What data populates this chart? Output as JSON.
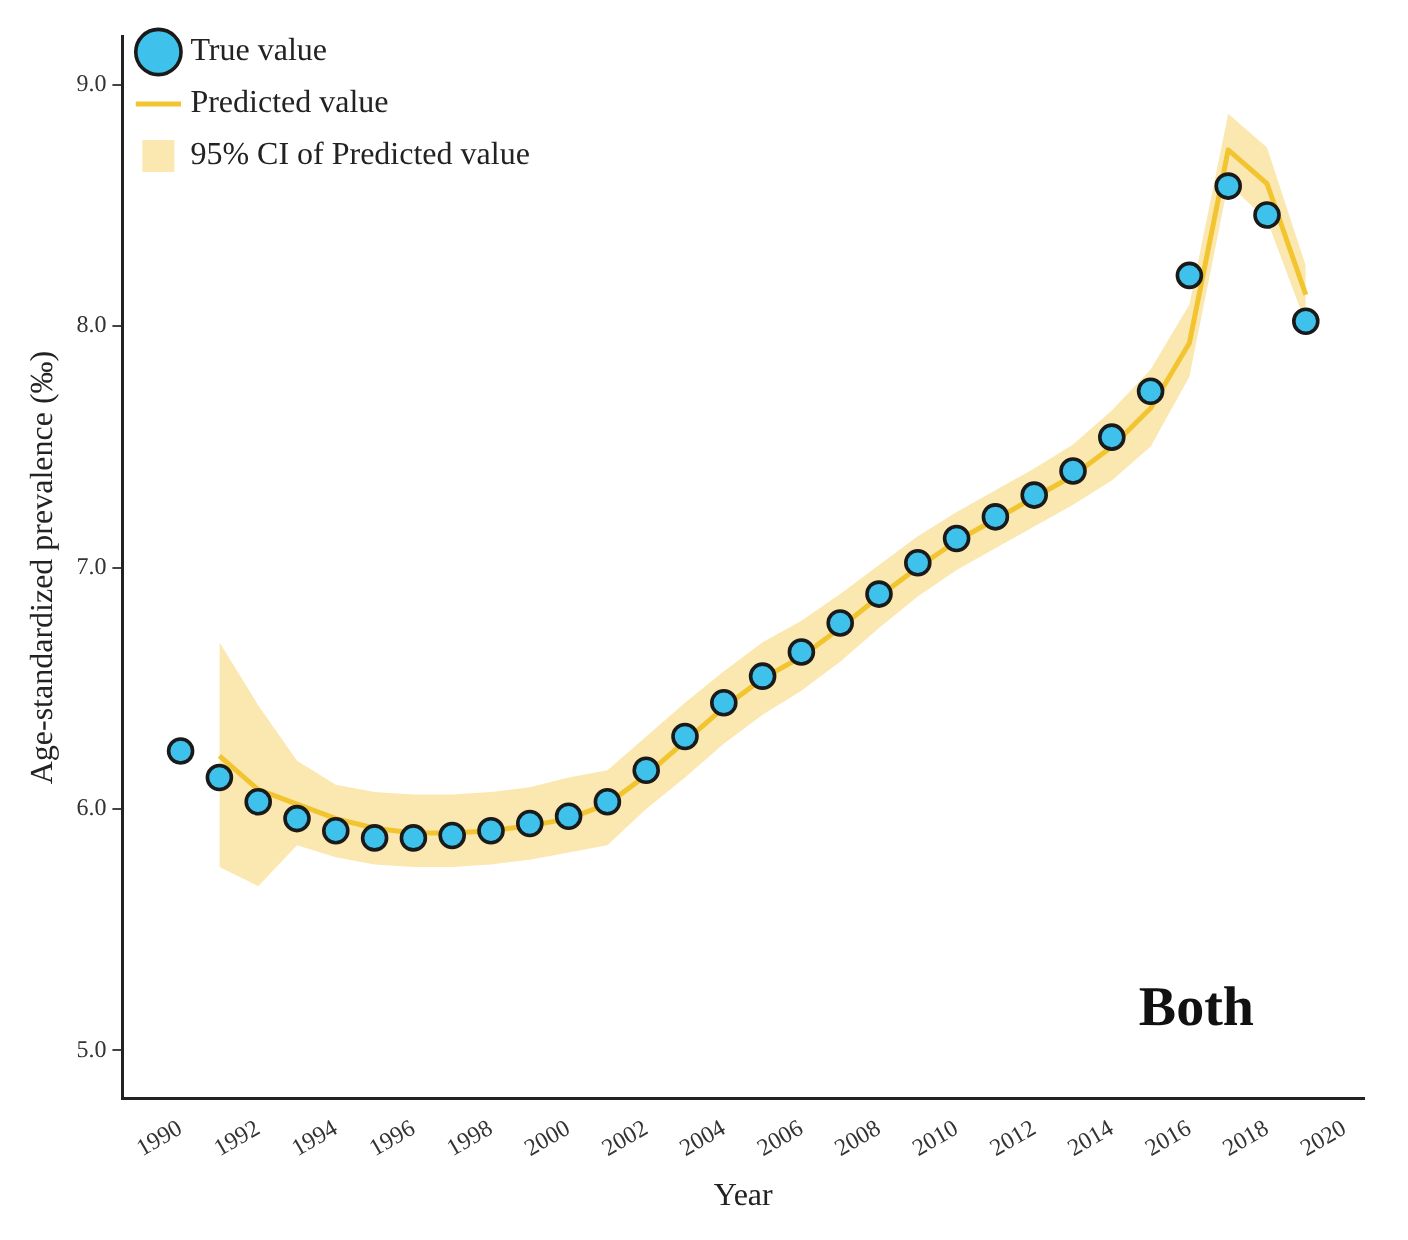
{
  "chart_data": {
    "type": "line",
    "xlabel": "Year",
    "ylabel": "Age-standardized prevalence (‰)",
    "annotations": [
      "Both"
    ],
    "x": [
      1990,
      1991,
      1992,
      1993,
      1994,
      1995,
      1996,
      1997,
      1998,
      1999,
      2000,
      2001,
      2002,
      2003,
      2004,
      2005,
      2006,
      2007,
      2008,
      2009,
      2010,
      2011,
      2012,
      2013,
      2014,
      2015,
      2016,
      2017,
      2018,
      2019
    ],
    "series": [
      {
        "name": "True value",
        "type": "scatter",
        "marker": "circle",
        "color": "#3ec1ea",
        "values": [
          6.24,
          6.13,
          6.03,
          5.96,
          5.91,
          5.88,
          5.88,
          5.89,
          5.91,
          5.94,
          5.97,
          6.03,
          6.16,
          6.3,
          6.44,
          6.55,
          6.65,
          6.77,
          6.89,
          7.02,
          7.12,
          7.21,
          7.3,
          7.4,
          7.54,
          7.73,
          8.21,
          8.58,
          8.46,
          8.02
        ]
      },
      {
        "name": "Predicted value",
        "type": "line",
        "marker": "none",
        "color": "#f2c530",
        "values": [
          null,
          6.22,
          6.08,
          6.02,
          5.96,
          5.92,
          5.9,
          5.9,
          5.91,
          5.93,
          5.96,
          6.02,
          6.14,
          6.28,
          6.42,
          6.54,
          6.63,
          6.75,
          6.88,
          7.0,
          7.11,
          7.2,
          7.29,
          7.38,
          7.5,
          7.66,
          7.93,
          8.73,
          8.59,
          8.13
        ]
      },
      {
        "name": "95% CI of Predicted value",
        "type": "area",
        "color": "#fbe8b0",
        "values": [
          null,
          null,
          null,
          null,
          null,
          null,
          null,
          null,
          null,
          null,
          null,
          null,
          null,
          null,
          null,
          null,
          null,
          null,
          null,
          null,
          null,
          null,
          null,
          null,
          null,
          null,
          null,
          null,
          null,
          null
        ],
        "lower": [
          null,
          5.76,
          5.68,
          5.85,
          5.8,
          5.77,
          5.76,
          5.76,
          5.77,
          5.79,
          5.82,
          5.85,
          6.0,
          6.13,
          6.27,
          6.39,
          6.49,
          6.61,
          6.75,
          6.88,
          6.99,
          7.08,
          7.17,
          7.26,
          7.36,
          7.5,
          7.79,
          8.59,
          8.44,
          8.01
        ],
        "upper": [
          null,
          6.69,
          6.43,
          6.2,
          6.1,
          6.07,
          6.06,
          6.06,
          6.07,
          6.09,
          6.13,
          6.16,
          6.3,
          6.44,
          6.57,
          6.69,
          6.78,
          6.89,
          7.01,
          7.13,
          7.23,
          7.32,
          7.41,
          7.51,
          7.65,
          7.82,
          8.09,
          8.88,
          8.74,
          8.25
        ]
      }
    ],
    "xlim": [
      1988.5,
      2020.5
    ],
    "ylim": [
      4.8,
      9.2
    ],
    "xticks": [
      1990,
      1992,
      1994,
      1996,
      1998,
      2000,
      2002,
      2004,
      2006,
      2008,
      2010,
      2012,
      2014,
      2016,
      2018,
      2020
    ],
    "yticks": [
      {
        "value": 5,
        "label": "5.0"
      },
      {
        "value": 6,
        "label": "6.0"
      },
      {
        "value": 7,
        "label": "7.0"
      },
      {
        "value": 8,
        "label": "8.0"
      },
      {
        "value": 9,
        "label": "9.0"
      }
    ],
    "grid": false,
    "legend": "top left"
  }
}
